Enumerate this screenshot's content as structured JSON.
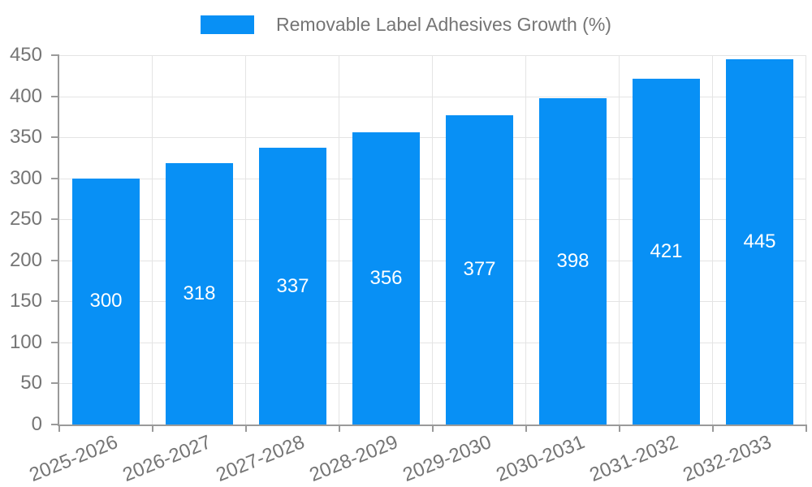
{
  "chart_data": {
    "type": "bar",
    "title": "",
    "legend": {
      "label": "Removable Label Adhesives Growth (%)",
      "position": "top-center"
    },
    "categories": [
      "2025-2026",
      "2026-2027",
      "2027-2028",
      "2028-2029",
      "2029-2030",
      "2030-2031",
      "2031-2032",
      "2032-2033"
    ],
    "series": [
      {
        "name": "Removable Label Adhesives Growth (%)",
        "values": [
          300,
          318,
          337,
          356,
          377,
          398,
          421,
          445
        ]
      }
    ],
    "bar_value_labels": [
      "300",
      "318",
      "337",
      "356",
      "377",
      "398",
      "421",
      "445"
    ],
    "xlabel": "",
    "ylabel": "",
    "ylim": [
      0,
      450
    ],
    "ytick_step": 50,
    "ytick_labels": [
      "0",
      "50",
      "100",
      "150",
      "200",
      "250",
      "300",
      "350",
      "400",
      "450"
    ],
    "grid": true,
    "colors": {
      "bar": "#0890F5",
      "bar_label": "#ffffff",
      "axis_text": "#757575",
      "axis_line": "#9a9a9a",
      "gridline": "#e4e4e4",
      "background": "#ffffff"
    }
  }
}
